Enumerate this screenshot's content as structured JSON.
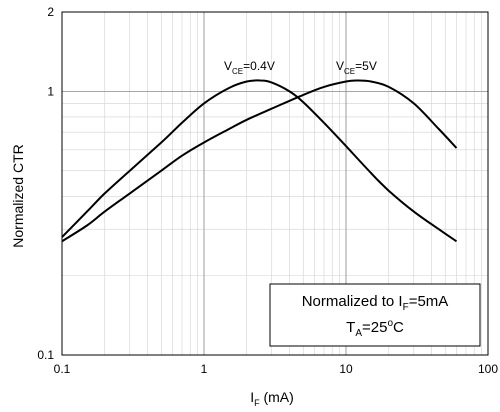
{
  "chart_data": {
    "type": "line",
    "title": "",
    "xlabel": {
      "main": "I",
      "sub": "F",
      "rest": " (mA)"
    },
    "ylabel": "Normalized CTR",
    "x_scale": "log",
    "y_scale": "log",
    "xlim": [
      0.1,
      100
    ],
    "ylim": [
      0.1,
      2
    ],
    "grid": true,
    "x_ticks": [
      {
        "value": 0.1,
        "label": "0.1"
      },
      {
        "value": 1,
        "label": "1"
      },
      {
        "value": 10,
        "label": "10"
      },
      {
        "value": 100,
        "label": "100"
      }
    ],
    "y_ticks": [
      {
        "value": 0.1,
        "label": "0.1"
      },
      {
        "value": 1,
        "label": "1"
      },
      {
        "value": 2,
        "label": "2"
      }
    ],
    "series": [
      {
        "name": "VCE=0.4V",
        "label": {
          "main": "V",
          "sub": "CE",
          "rest": "=0.4V"
        },
        "x": [
          0.1,
          0.15,
          0.2,
          0.3,
          0.5,
          0.7,
          1,
          1.5,
          2,
          2.5,
          3,
          4,
          5,
          7,
          10,
          15,
          20,
          30,
          45,
          60
        ],
        "y": [
          0.28,
          0.35,
          0.41,
          0.5,
          0.64,
          0.76,
          0.9,
          1.03,
          1.09,
          1.1,
          1.08,
          1.0,
          0.91,
          0.76,
          0.62,
          0.49,
          0.42,
          0.35,
          0.3,
          0.27
        ]
      },
      {
        "name": "VCE=5V",
        "label": {
          "main": "V",
          "sub": "CE",
          "rest": "=5V"
        },
        "x": [
          0.1,
          0.15,
          0.2,
          0.3,
          0.5,
          0.7,
          1,
          1.5,
          2,
          3,
          5,
          7,
          10,
          12,
          15,
          20,
          30,
          45,
          60
        ],
        "y": [
          0.27,
          0.31,
          0.35,
          0.41,
          0.5,
          0.57,
          0.64,
          0.72,
          0.78,
          0.86,
          0.97,
          1.04,
          1.09,
          1.1,
          1.09,
          1.04,
          0.9,
          0.72,
          0.61
        ]
      }
    ],
    "annotation": {
      "line1": {
        "main": "Normalized to I",
        "sub": "F",
        "rest": "=5mA"
      },
      "line2": {
        "main": "T",
        "sub": "A",
        "rest": "=25",
        "sup": "o",
        "tail": "C"
      },
      "position": "bottom-right"
    }
  }
}
